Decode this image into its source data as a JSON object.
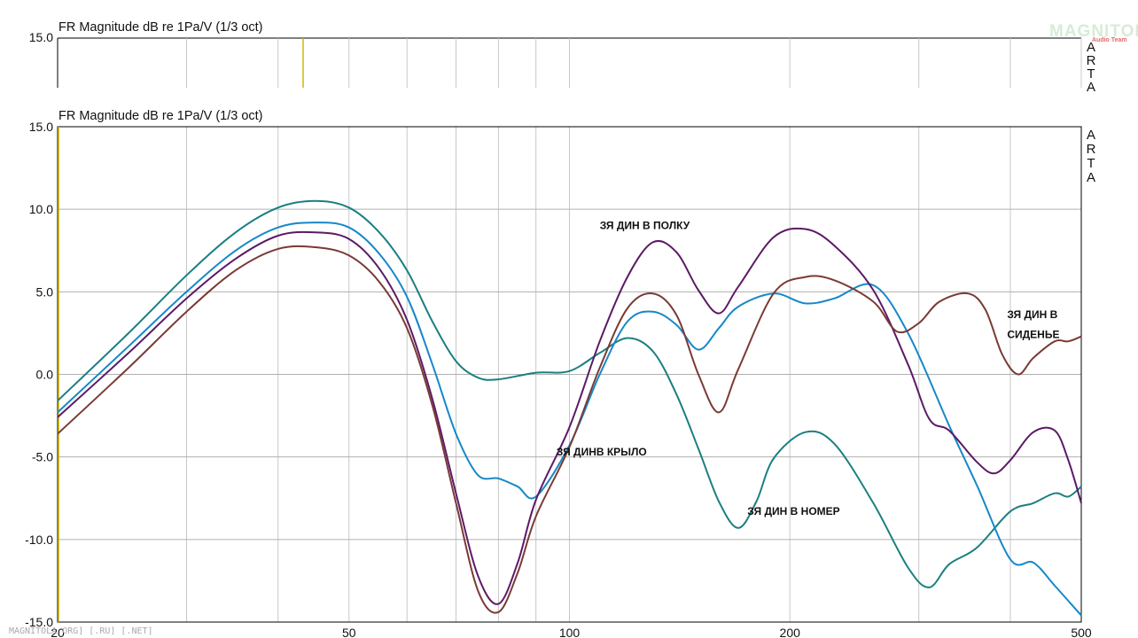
{
  "top_panel": {
    "title": "FR Magnitude dB re 1Pa/V (1/3 oct)",
    "y_label": "15.0",
    "brand_side": [
      "A",
      "R",
      "T",
      "A"
    ]
  },
  "logo": {
    "text": "MAGNITOLA",
    "sub": "Audio Team"
  },
  "watermark": "MAGNITOLA.ORG] [.RU] [.NET]",
  "chart_data": {
    "type": "line",
    "title": "FR Magnitude dB re 1Pa/V (1/3 oct)",
    "brand_side": [
      "A",
      "R",
      "T",
      "A"
    ],
    "x_scale": "log",
    "xlim": [
      20,
      500
    ],
    "ylim": [
      -15,
      15
    ],
    "x_ticks": [
      {
        "v": 20,
        "label": "20"
      },
      {
        "v": 50,
        "label": "50"
      },
      {
        "v": 100,
        "label": "100"
      },
      {
        "v": 200,
        "label": "200"
      },
      {
        "v": 500,
        "label": "500"
      }
    ],
    "x_grid": [
      30,
      40,
      50,
      60,
      70,
      80,
      90,
      100,
      200,
      300,
      400,
      500
    ],
    "y_ticks": [
      {
        "v": 15,
        "label": "15.0"
      },
      {
        "v": 10,
        "label": "10.0"
      },
      {
        "v": 5,
        "label": "5.0"
      },
      {
        "v": 0,
        "label": "0.0"
      },
      {
        "v": -5,
        "label": "-5.0"
      },
      {
        "v": -10,
        "label": "-10.0"
      },
      {
        "v": -15,
        "label": "-15.0"
      }
    ],
    "grid": true,
    "annotations": [
      {
        "text": "ЗЯ ДИН В ПОЛКУ",
        "x": 110,
        "y": 8.8
      },
      {
        "text": "ЗЯ ДИН В",
        "x": 396,
        "y": 3.4
      },
      {
        "text": "СИДЕНЬЕ",
        "x": 396,
        "y": 2.2
      },
      {
        "text": "ЗЯ ДИНВ КРЫЛО",
        "x": 96,
        "y": -4.9
      },
      {
        "text": "ЗЯ ДИН В НОМЕР",
        "x": 175,
        "y": -8.5
      }
    ],
    "series": [
      {
        "color": "#1a7f80",
        "points": [
          [
            20,
            -1.6
          ],
          [
            25,
            2.5
          ],
          [
            30,
            6
          ],
          [
            35,
            8.6
          ],
          [
            40,
            10.1
          ],
          [
            45,
            10.5
          ],
          [
            50,
            10.1
          ],
          [
            55,
            8.6
          ],
          [
            60,
            6.3
          ],
          [
            65,
            3.2
          ],
          [
            70,
            0.8
          ],
          [
            75,
            -0.2
          ],
          [
            80,
            -0.3
          ],
          [
            90,
            0.1
          ],
          [
            100,
            0.2
          ],
          [
            110,
            1.3
          ],
          [
            120,
            2.2
          ],
          [
            130,
            1.4
          ],
          [
            140,
            -1.2
          ],
          [
            150,
            -4.5
          ],
          [
            160,
            -7.7
          ],
          [
            170,
            -9.3
          ],
          [
            180,
            -7.7
          ],
          [
            190,
            -5.1
          ],
          [
            210,
            -3.5
          ],
          [
            230,
            -4.2
          ],
          [
            260,
            -7.8
          ],
          [
            290,
            -11.7
          ],
          [
            310,
            -12.9
          ],
          [
            330,
            -11.5
          ],
          [
            360,
            -10.5
          ],
          [
            400,
            -8.3
          ],
          [
            430,
            -7.8
          ],
          [
            460,
            -7.2
          ],
          [
            480,
            -7.4
          ],
          [
            500,
            -6.8
          ]
        ]
      },
      {
        "color": "#1688c9",
        "points": [
          [
            20,
            -2.3
          ],
          [
            25,
            1.7
          ],
          [
            30,
            5
          ],
          [
            35,
            7.5
          ],
          [
            40,
            8.9
          ],
          [
            45,
            9.2
          ],
          [
            50,
            8.9
          ],
          [
            55,
            7.3
          ],
          [
            60,
            4.7
          ],
          [
            65,
            0.6
          ],
          [
            70,
            -3.6
          ],
          [
            75,
            -6.1
          ],
          [
            80,
            -6.3
          ],
          [
            85,
            -6.8
          ],
          [
            90,
            -7.4
          ],
          [
            100,
            -4.3
          ],
          [
            110,
            0
          ],
          [
            120,
            3.2
          ],
          [
            130,
            3.8
          ],
          [
            140,
            3
          ],
          [
            150,
            1.5
          ],
          [
            160,
            2.8
          ],
          [
            170,
            4.1
          ],
          [
            190,
            4.9
          ],
          [
            210,
            4.3
          ],
          [
            230,
            4.6
          ],
          [
            260,
            5.4
          ],
          [
            290,
            2.5
          ],
          [
            330,
            -3.1
          ],
          [
            360,
            -6.7
          ],
          [
            400,
            -11.2
          ],
          [
            430,
            -11.4
          ],
          [
            460,
            -12.8
          ],
          [
            500,
            -14.6
          ]
        ]
      },
      {
        "color": "#5c1a66",
        "points": [
          [
            20,
            -2.6
          ],
          [
            25,
            1.3
          ],
          [
            30,
            4.6
          ],
          [
            35,
            7
          ],
          [
            40,
            8.4
          ],
          [
            45,
            8.6
          ],
          [
            50,
            8.2
          ],
          [
            55,
            6.4
          ],
          [
            60,
            3.3
          ],
          [
            65,
            -1.5
          ],
          [
            70,
            -7.2
          ],
          [
            75,
            -12.2
          ],
          [
            80,
            -13.9
          ],
          [
            85,
            -11.4
          ],
          [
            90,
            -7.6
          ],
          [
            100,
            -3.2
          ],
          [
            110,
            2
          ],
          [
            120,
            5.9
          ],
          [
            130,
            8
          ],
          [
            140,
            7.4
          ],
          [
            150,
            5.1
          ],
          [
            160,
            3.7
          ],
          [
            170,
            5.3
          ],
          [
            190,
            8.3
          ],
          [
            210,
            8.8
          ],
          [
            230,
            7.8
          ],
          [
            260,
            5.1
          ],
          [
            290,
            0.6
          ],
          [
            310,
            -2.7
          ],
          [
            330,
            -3.4
          ],
          [
            360,
            -5.3
          ],
          [
            380,
            -6
          ],
          [
            400,
            -5.2
          ],
          [
            430,
            -3.5
          ],
          [
            460,
            -3.4
          ],
          [
            480,
            -5.2
          ],
          [
            500,
            -7.8
          ]
        ]
      },
      {
        "color": "#7a3a35",
        "points": [
          [
            20,
            -3.6
          ],
          [
            25,
            0.4
          ],
          [
            30,
            3.8
          ],
          [
            35,
            6.3
          ],
          [
            40,
            7.6
          ],
          [
            45,
            7.7
          ],
          [
            50,
            7.2
          ],
          [
            55,
            5.6
          ],
          [
            60,
            2.8
          ],
          [
            65,
            -1.9
          ],
          [
            70,
            -7.8
          ],
          [
            75,
            -13.1
          ],
          [
            80,
            -14.4
          ],
          [
            85,
            -12
          ],
          [
            90,
            -8.6
          ],
          [
            100,
            -4.4
          ],
          [
            110,
            0.4
          ],
          [
            120,
            4
          ],
          [
            130,
            4.9
          ],
          [
            140,
            3.6
          ],
          [
            150,
            0
          ],
          [
            160,
            -2.3
          ],
          [
            170,
            0.3
          ],
          [
            190,
            4.9
          ],
          [
            210,
            5.9
          ],
          [
            230,
            5.7
          ],
          [
            260,
            4.4
          ],
          [
            280,
            2.6
          ],
          [
            300,
            3.1
          ],
          [
            320,
            4.4
          ],
          [
            350,
            4.9
          ],
          [
            370,
            3.9
          ],
          [
            390,
            1.2
          ],
          [
            410,
            0
          ],
          [
            430,
            1
          ],
          [
            460,
            2
          ],
          [
            480,
            2
          ],
          [
            500,
            2.3
          ]
        ]
      }
    ]
  }
}
